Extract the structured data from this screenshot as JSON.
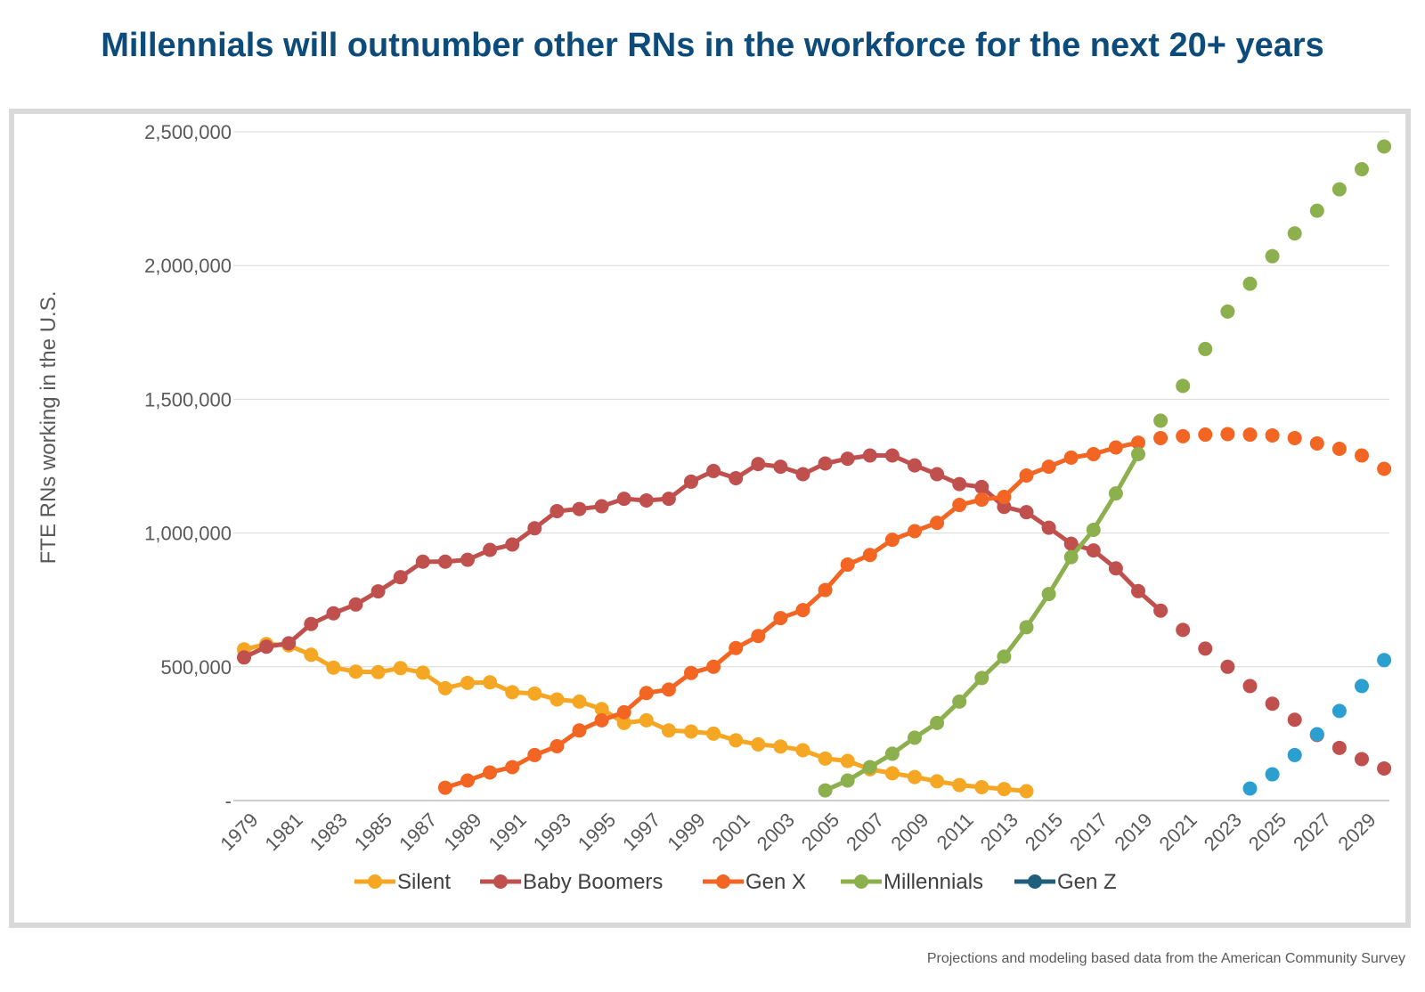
{
  "title": "Millennials will outnumber other RNs in the workforce for the next 20+ years",
  "source_note": "Projections and modeling based data from the American Community Survey",
  "chart_data": {
    "type": "line",
    "title": "Millennials will outnumber other RNs in the workforce for the next 20+ years",
    "xlabel": "",
    "ylabel": "FTE RNs working in the U.S.",
    "ylim": [
      0,
      2500000
    ],
    "xlim": [
      1979,
      2030
    ],
    "grid": true,
    "legend_position": "bottom",
    "y_ticks": [
      0,
      500000,
      1000000,
      1500000,
      2000000,
      2500000
    ],
    "y_tick_labels": [
      "-",
      "500,000",
      "1,000,000",
      "1,500,000",
      "2,000,000",
      "2,500,000"
    ],
    "x_tick_labels": [
      "1979",
      "1981",
      "1983",
      "1985",
      "1987",
      "1989",
      "1991",
      "1993",
      "1995",
      "1997",
      "1999",
      "2001",
      "2003",
      "2005",
      "2007",
      "2009",
      "2011",
      "2013",
      "2015",
      "2017",
      "2019",
      "2021",
      "2023",
      "2025",
      "2027",
      "2029"
    ],
    "series": [
      {
        "name": "Silent",
        "color": "#f5a623",
        "start": 1979,
        "values": [
          565000,
          585000,
          580000,
          545000,
          497000,
          482000,
          480000,
          495000,
          478000,
          420000,
          440000,
          442000,
          405000,
          400000,
          378000,
          370000,
          342000,
          290000,
          300000,
          262000,
          258000,
          250000,
          225000,
          210000,
          202000,
          188000,
          157000,
          148000,
          117000,
          102000,
          88000,
          72000,
          58000,
          50000,
          43000,
          35000
        ],
        "projected_start": null
      },
      {
        "name": "Baby Boomers",
        "color": "#c0504d",
        "start": 1979,
        "values": [
          535000,
          575000,
          588000,
          660000,
          700000,
          733000,
          782000,
          835000,
          893000,
          893000,
          900000,
          937000,
          957000,
          1018000,
          1082000,
          1090000,
          1100000,
          1128000,
          1122000,
          1128000,
          1192000,
          1232000,
          1205000,
          1258000,
          1248000,
          1220000,
          1260000,
          1278000,
          1290000,
          1290000,
          1253000,
          1220000,
          1183000,
          1172000,
          1098000,
          1078000,
          1020000,
          960000,
          935000,
          868000,
          783000,
          710000,
          638000,
          568000,
          500000,
          428000,
          362000,
          302000,
          245000,
          197000,
          155000,
          120000
        ],
        "projected_start": 2020
      },
      {
        "name": "Gen X",
        "color": "#f26522",
        "start": 1988,
        "values": [
          48000,
          75000,
          105000,
          125000,
          170000,
          203000,
          262000,
          300000,
          330000,
          402000,
          415000,
          477000,
          500000,
          570000,
          615000,
          682000,
          712000,
          787000,
          882000,
          918000,
          975000,
          1007000,
          1038000,
          1105000,
          1125000,
          1135000,
          1215000,
          1248000,
          1282000,
          1295000,
          1320000,
          1338000,
          1355000,
          1362000,
          1368000,
          1370000,
          1368000,
          1365000,
          1355000,
          1335000,
          1315000,
          1290000,
          1240000
        ],
        "projected_start": 2019
      },
      {
        "name": "Millennials",
        "color": "#8db04e",
        "start": 2005,
        "values": [
          38000,
          75000,
          125000,
          175000,
          235000,
          290000,
          370000,
          458000,
          538000,
          648000,
          772000,
          910000,
          1012000,
          1148000,
          1295000,
          1420000,
          1550000,
          1688000,
          1828000,
          1932000,
          2035000,
          2120000,
          2205000,
          2285000,
          2360000,
          2445000
        ],
        "projected_start": 2019
      },
      {
        "name": "Gen Z",
        "color": "#2a9fd0",
        "legend_color": "#1f5f7a",
        "start": 2024,
        "values": [
          45000,
          98000,
          170000,
          248000,
          335000,
          428000,
          525000
        ],
        "projected_start": 2024
      }
    ]
  }
}
